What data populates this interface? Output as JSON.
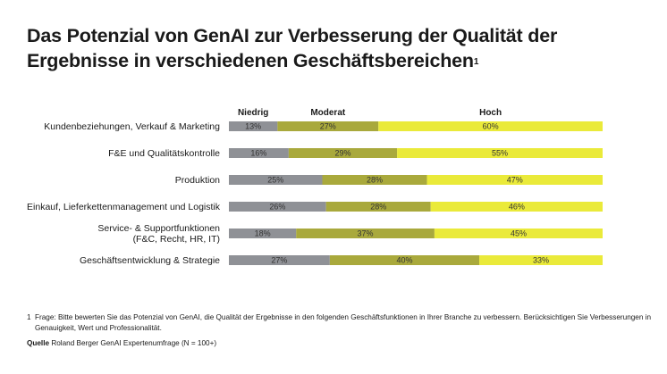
{
  "title": "Das Potenzial von GenAI zur Verbesserung der Qualität der Ergebnisse in verschiedenen Geschäftsbereichen",
  "title_superscript": "1",
  "chart_data": {
    "type": "bar",
    "orientation": "horizontal",
    "stacked": true,
    "percent_suffix": "%",
    "headers": [
      "Niedrig",
      "Moderat",
      "Hoch"
    ],
    "categories": [
      "Kundenbeziehungen, Verkauf & Marketing",
      "F&E und Qualitätskontrolle",
      "Produktion",
      "Einkauf, Lieferkettenmanagement und Logistik",
      "Service- & Supportfunktionen (F&C, Recht, HR, IT)",
      "Geschäftsentwicklung & Strategie"
    ],
    "category_lines": [
      [
        "Kundenbeziehungen, Verkauf & Marketing"
      ],
      [
        "F&E und Qualitätskontrolle"
      ],
      [
        "Produktion"
      ],
      [
        "Einkauf, Lieferkettenmanagement und Logistik"
      ],
      [
        "Service- & Supportfunktionen",
        "(F&C, Recht, HR, IT)"
      ],
      [
        "Geschäftsentwicklung & Strategie"
      ]
    ],
    "series": [
      {
        "name": "Niedrig",
        "color": "#8f9196",
        "values": [
          13,
          16,
          25,
          26,
          18,
          27
        ]
      },
      {
        "name": "Moderat",
        "color": "#a9a93c",
        "values": [
          27,
          29,
          28,
          28,
          37,
          40
        ]
      },
      {
        "name": "Hoch",
        "color": "#eaea3a",
        "values": [
          60,
          55,
          47,
          46,
          45,
          33
        ]
      }
    ],
    "xlim": [
      0,
      100
    ]
  },
  "footnote": {
    "number": "1",
    "text": "Frage: Bitte bewerten Sie das Potenzial von GenAI, die Qualität der Ergebnisse in den folgenden Geschäftsfunktionen in Ihrer Branche zu verbessern. Berücksichtigen Sie Verbesserungen in Genauigkeit, Wert und Professionalität."
  },
  "source": {
    "label": "Quelle",
    "text": "Roland Berger GenAI Expertenumfrage (N = 100+)"
  }
}
